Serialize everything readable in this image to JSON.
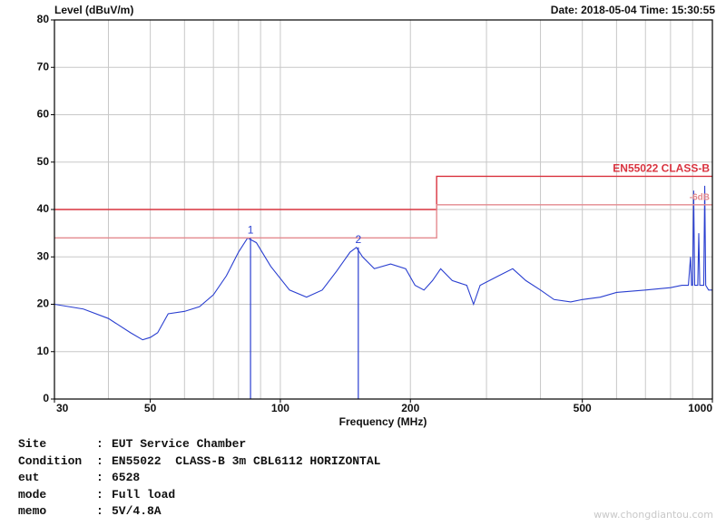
{
  "chart_data": {
    "type": "line",
    "ylabel": "Level (dBuV/m)",
    "date": "Date: 2018-05-04  Time: 15:30:55",
    "xlabel": "Frequency (MHz)",
    "log_x": true,
    "grid": true,
    "xlim": [
      30,
      1000
    ],
    "ylim": [
      0,
      80
    ],
    "xticks": [
      30,
      50,
      100,
      200,
      500,
      1000
    ],
    "xminor": [
      40,
      60,
      70,
      80,
      90,
      300,
      400,
      600,
      700,
      800,
      900
    ],
    "yticks": [
      0,
      10,
      20,
      30,
      40,
      50,
      60,
      70,
      80
    ],
    "series": [
      {
        "color": "#2a3fd0",
        "x": [
          30,
          35,
          40,
          45,
          48,
          50,
          52,
          55,
          60,
          65,
          70,
          75,
          80,
          84,
          88,
          95,
          105,
          115,
          125,
          135,
          145,
          150,
          155,
          165,
          180,
          195,
          205,
          215,
          225,
          235,
          250,
          270,
          280,
          290,
          320,
          345,
          370,
          400,
          430,
          470,
          500,
          550,
          600,
          700,
          800,
          850,
          880,
          890,
          895,
          900,
          905,
          910,
          925,
          930,
          935,
          955,
          960,
          965,
          980,
          1000
        ],
        "values": [
          20,
          19,
          17,
          14,
          12.5,
          13,
          14,
          18,
          18.5,
          19.5,
          22,
          26,
          31,
          34,
          33,
          28,
          23,
          21.5,
          23,
          27,
          31,
          32,
          30,
          27.5,
          28.5,
          27.5,
          24,
          23,
          25,
          27.5,
          25,
          24,
          20,
          24,
          26,
          27.5,
          25,
          23,
          21,
          20.5,
          21,
          21.5,
          22.5,
          23,
          23.5,
          24,
          24,
          30,
          24,
          24,
          44,
          24,
          24,
          35,
          24,
          24,
          45,
          24,
          23,
          23
        ]
      },
      {
        "name": "EN55022  CLASS-B",
        "color": "#d9333f",
        "x": [
          30,
          230,
          230,
          1000
        ],
        "values": [
          40,
          40,
          47,
          47
        ]
      },
      {
        "name": "-6dB",
        "color": "#e48a8f",
        "x": [
          30,
          230,
          230,
          1000
        ],
        "values": [
          34,
          34,
          41,
          41
        ]
      }
    ],
    "markers": [
      {
        "label": "1",
        "freq": 85.3,
        "level": 34
      },
      {
        "label": "2",
        "freq": 151.5,
        "level": 32
      }
    ]
  },
  "info": {
    "separator": ":",
    "rows": [
      {
        "key": "Site",
        "value": "EUT Service Chamber"
      },
      {
        "key": "Condition",
        "value": "EN55022  CLASS-B 3m CBL6112 HORIZONTAL"
      },
      {
        "key": "eut",
        "value": "6528"
      },
      {
        "key": "mode",
        "value": "Full load"
      },
      {
        "key": "memo",
        "value": "5V/4.8A"
      }
    ]
  },
  "watermark": "www.chongdiantou.com"
}
